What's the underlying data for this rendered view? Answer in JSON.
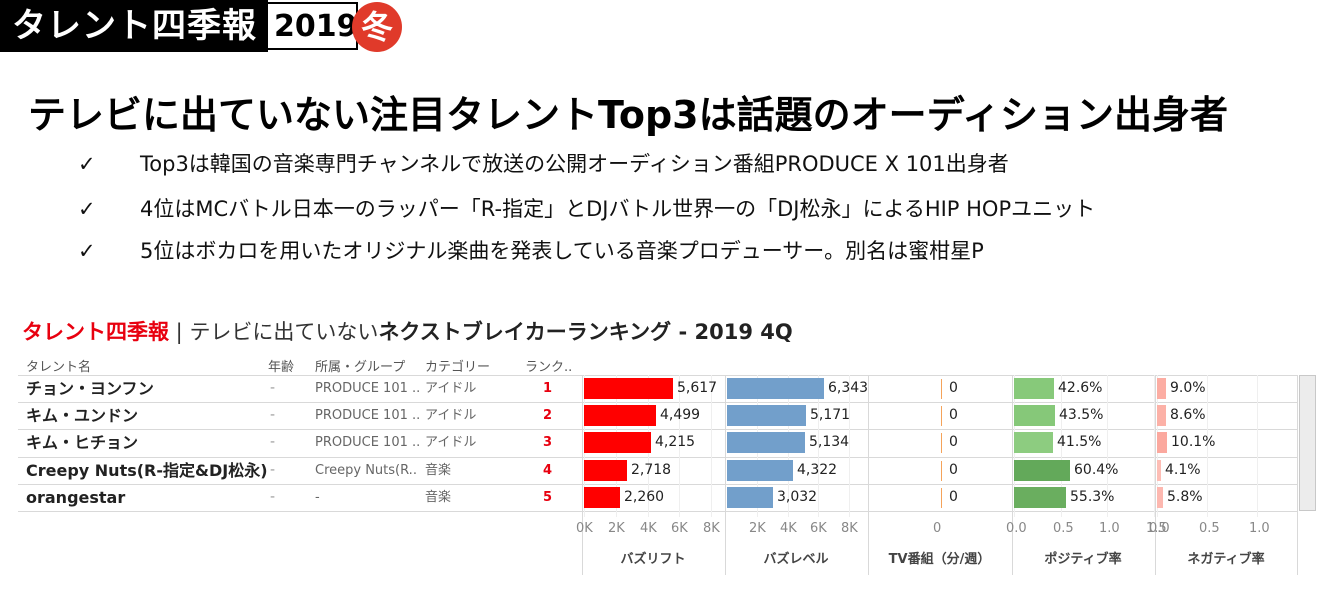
{
  "badge": {
    "brand": "タレント四季報",
    "year": "2019",
    "season": "冬",
    "season_color": "#e03a2a"
  },
  "headline": "テレビに出ていない注目タレントTop3は話題のオーディション出身者",
  "bullets": [
    {
      "icon": "check-icon",
      "mark": "✓",
      "text": "Top3は韓国の音楽専門チャンネルで放送の公開オーディション番組PRODUCE X 101出身者"
    },
    {
      "icon": "check-icon",
      "mark": "✓",
      "text": "4位はMCバトル日本一のラッパー「R-指定」とDJバトル世界一の「DJ松永」によるHIP HOPユニット"
    },
    {
      "icon": "check-icon",
      "mark": "✓",
      "text": "5位はボカロを用いたオリジナル楽曲を発表している音楽プロデューサー。別名は蜜柑星P"
    }
  ],
  "dashboard": {
    "title_brand": "タレント四季報",
    "title_sep": " | ",
    "title_plain": "テレビに出ていない",
    "title_bold": "ネクストブレイカーランキング - 2019 4Q",
    "brand_color": "#e8000f",
    "headers": {
      "name": "タレント名",
      "age": "年齢",
      "group": "所属・グループ",
      "category": "カテゴリー",
      "rank": "ランク.."
    },
    "rows": [
      {
        "name": "チョン・ヨンフン",
        "bold": true,
        "age": "-",
        "group": "PRODUCE 101 ..",
        "category": "アイドル",
        "rank": "1",
        "buzz_lift": 5617,
        "buzz_lift_label": "5,617",
        "buzz_level": 6343,
        "buzz_level_label": "6,343",
        "tv": 0,
        "tv_label": "0",
        "positive": 0.426,
        "positive_label": "42.6%",
        "negative": 0.09,
        "negative_label": "9.0%"
      },
      {
        "name": "キム・ユンドン",
        "bold": true,
        "age": "-",
        "group": "PRODUCE 101 ..",
        "category": "アイドル",
        "rank": "2",
        "buzz_lift": 4499,
        "buzz_lift_label": "4,499",
        "buzz_level": 5171,
        "buzz_level_label": "5,171",
        "tv": 0,
        "tv_label": "0",
        "positive": 0.435,
        "positive_label": "43.5%",
        "negative": 0.086,
        "negative_label": "8.6%"
      },
      {
        "name": "キム・ヒチョン",
        "bold": true,
        "age": "-",
        "group": "PRODUCE 101 ..",
        "category": "アイドル",
        "rank": "3",
        "buzz_lift": 4215,
        "buzz_lift_label": "4,215",
        "buzz_level": 5134,
        "buzz_level_label": "5,134",
        "tv": 0,
        "tv_label": "0",
        "positive": 0.415,
        "positive_label": "41.5%",
        "negative": 0.101,
        "negative_label": "10.1%"
      },
      {
        "name": "Creepy Nuts(R-指定&DJ松永)",
        "bold": true,
        "age": "-",
        "group": "Creepy Nuts(R..",
        "category": "音楽",
        "rank": "4",
        "buzz_lift": 2718,
        "buzz_lift_label": "2,718",
        "buzz_level": 4322,
        "buzz_level_label": "4,322",
        "tv": 0,
        "tv_label": "0",
        "positive": 0.604,
        "positive_label": "60.4%",
        "negative": 0.041,
        "negative_label": "4.1%"
      },
      {
        "name": "orangestar",
        "bold": true,
        "age": "-",
        "group": "-",
        "category": "音楽",
        "rank": "5",
        "buzz_lift": 2260,
        "buzz_lift_label": "2,260",
        "buzz_level": 3032,
        "buzz_level_label": "3,032",
        "tv": 0,
        "tv_label": "0",
        "positive": 0.553,
        "positive_label": "55.3%",
        "negative": 0.058,
        "negative_label": "5.8%"
      }
    ]
  },
  "chart_data": {
    "type": "bar",
    "orientation": "horizontal",
    "title": "タレント四季報 | テレビに出ていないネクストブレイカーランキング - 2019 4Q",
    "categories": [
      "チョン・ヨンフン",
      "キム・ユンドン",
      "キム・ヒチョン",
      "Creepy Nuts(R-指定&DJ松永)",
      "orangestar"
    ],
    "series": [
      {
        "name": "バズリフト",
        "key": "buzz_lift",
        "values": [
          5617,
          4499,
          4215,
          2718,
          2260
        ],
        "labels": [
          "5,617",
          "4,499",
          "4,215",
          "2,718",
          "2,260"
        ],
        "color": "#ff0000",
        "xlim": [
          0,
          8800
        ],
        "ticks": [
          0,
          2000,
          4000,
          6000,
          8000
        ],
        "tick_labels": [
          "0K",
          "2K",
          "4K",
          "6K",
          "8K"
        ]
      },
      {
        "name": "バズレベル",
        "key": "buzz_level",
        "values": [
          6343,
          5171,
          5134,
          4322,
          3032
        ],
        "labels": [
          "6,343",
          "5,171",
          "5,134",
          "4,322",
          "3,032"
        ],
        "color": "#729fcb",
        "xlim": [
          0,
          9200
        ],
        "ticks": [
          2000,
          4000,
          6000,
          8000
        ],
        "tick_labels": [
          "2K",
          "4K",
          "6K",
          "8K"
        ]
      },
      {
        "name": "TV番組（分/週）",
        "key": "tv",
        "values": [
          0,
          0,
          0,
          0,
          0
        ],
        "labels": [
          "0",
          "0",
          "0",
          "0",
          "0"
        ],
        "color": "#f5a35a",
        "xlim": [
          -1,
          1
        ],
        "ticks": [
          0
        ],
        "tick_labels": [
          "0"
        ]
      },
      {
        "name": "ポジティブ率",
        "key": "positive",
        "values": [
          0.426,
          0.435,
          0.415,
          0.604,
          0.553
        ],
        "labels": [
          "42.6%",
          "43.5%",
          "41.5%",
          "60.4%",
          "55.3%"
        ],
        "colors": [
          "#87c97a",
          "#86c879",
          "#8dcc80",
          "#63a95a",
          "#6aae5f"
        ],
        "xlim": [
          0,
          1.5
        ],
        "ticks": [
          0,
          0.5,
          1.0,
          1.5
        ],
        "tick_labels": [
          "0.0",
          "0.5",
          "1.0",
          "1.5"
        ]
      },
      {
        "name": "ネガティブ率",
        "key": "negative",
        "values": [
          0.09,
          0.086,
          0.101,
          0.041,
          0.058
        ],
        "labels": [
          "9.0%",
          "8.6%",
          "10.1%",
          "4.1%",
          "5.8%"
        ],
        "colors": [
          "#fcada3",
          "#fcb1a7",
          "#fba89e",
          "#fdbdb5",
          "#fdb8b0"
        ],
        "xlim": [
          0,
          1.4
        ],
        "ticks": [
          0,
          0.5,
          1.0
        ],
        "tick_labels": [
          "0.0",
          "0.5",
          "1.0"
        ]
      }
    ],
    "grid": true,
    "legend": "none"
  }
}
